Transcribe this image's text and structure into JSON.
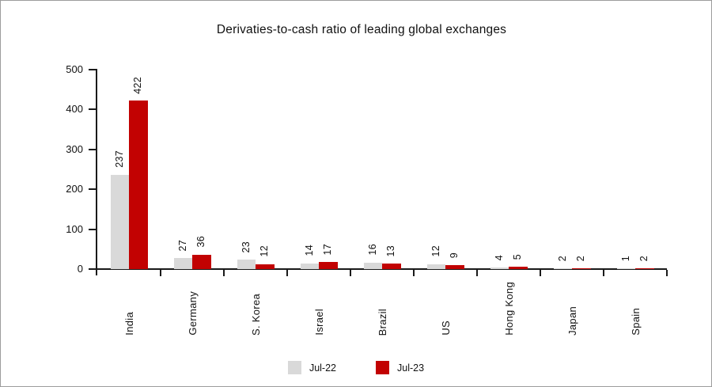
{
  "window": {
    "background": "#ffffff",
    "border_color": "#9c9c9c",
    "axis_color": "#1a1a1a",
    "text_color": "#111111"
  },
  "chart_data": {
    "type": "bar",
    "title": "Derivaties-to-cash ratio of leading global exchanges",
    "categories": [
      "India",
      "Germany",
      "S. Korea",
      "Israel",
      "Brazil",
      "US",
      "Hong Kong",
      "Japan",
      "Spain"
    ],
    "series": [
      {
        "name": "Jul-22",
        "color": "#d9d9d9",
        "values": [
          237,
          27,
          23,
          14,
          16,
          12,
          4,
          2,
          1
        ]
      },
      {
        "name": "Jul-23",
        "color": "#c20202",
        "values": [
          422,
          36,
          12,
          17,
          13,
          9,
          5,
          2,
          2
        ]
      }
    ],
    "ylim": [
      0,
      500
    ],
    "yticks": [
      0,
      100,
      200,
      300,
      400,
      500
    ],
    "grid": false,
    "legend_position": "bottom",
    "bar_value_labels": true,
    "value_label_rotation": 90,
    "category_label_rotation": 90
  }
}
